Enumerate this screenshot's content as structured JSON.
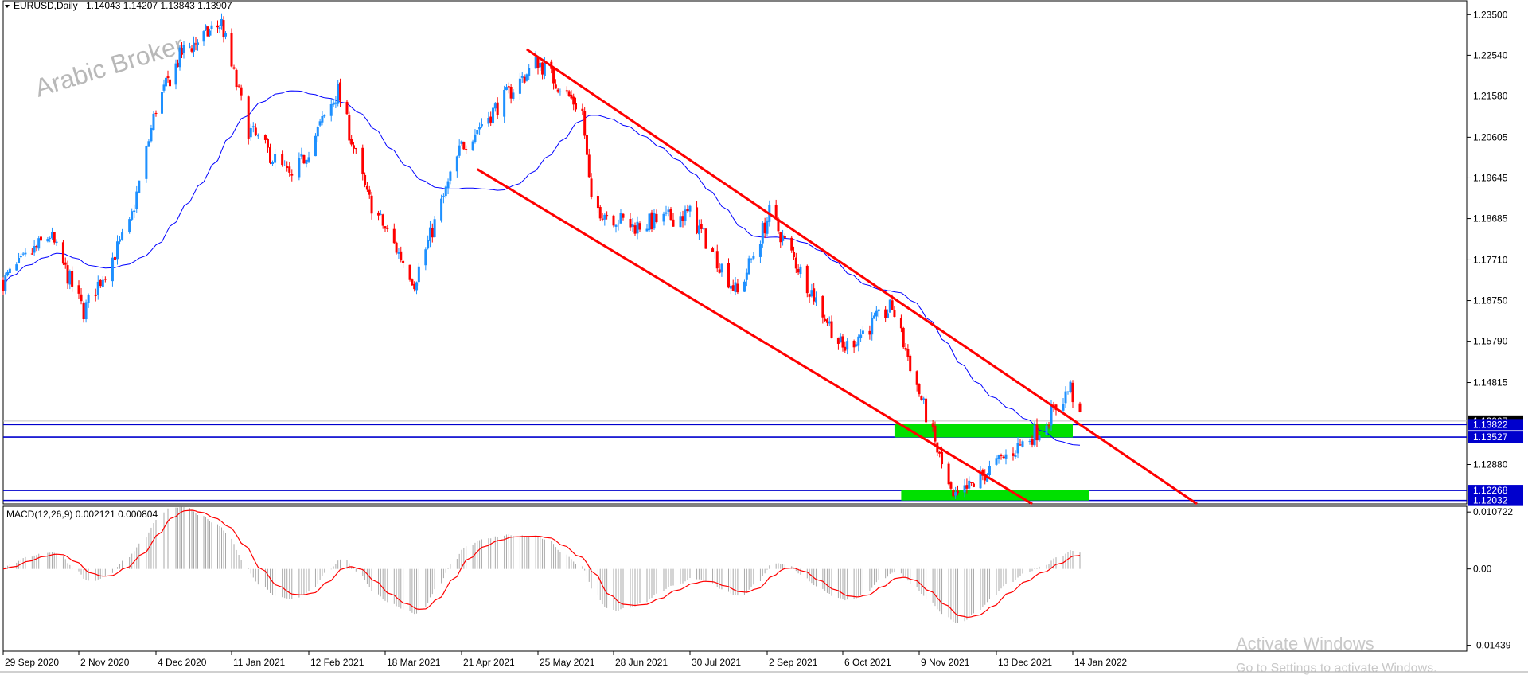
{
  "chart_data": {
    "type": "candlestick",
    "symbol": "EURUSD,Daily",
    "ohlc_header": "1.14043 1.14207 1.13843 1.13907",
    "watermark": "Arabic Broker",
    "price_axis_ticks": [
      "1.23500",
      "1.22540",
      "1.21580",
      "1.20605",
      "1.19645",
      "1.18685",
      "1.17710",
      "1.16750",
      "1.15790",
      "1.14815",
      "1.12880"
    ],
    "price_axis_values": [
      1.235,
      1.2254,
      1.2158,
      1.20605,
      1.19645,
      1.18685,
      1.1771,
      1.1675,
      1.1579,
      1.14815,
      1.1288
    ],
    "price_range": [
      1.1195,
      1.2375
    ],
    "date_axis_ticks": [
      "29 Sep 2020",
      "2 Nov 2020",
      "4 Dec 2020",
      "11 Jan 2021",
      "12 Feb 2021",
      "18 Mar 2021",
      "21 Apr 2021",
      "25 May 2021",
      "28 Jun 2021",
      "30 Jul 2021",
      "2 Sep 2021",
      "6 Oct 2021",
      "9 Nov 2021",
      "13 Dec 2021",
      "14 Jan 2022"
    ],
    "horizontal_levels": [
      {
        "price": 1.13907,
        "label": "1.13907",
        "color": "#c0c0c0"
      },
      {
        "price": 1.13822,
        "label": "1.13822",
        "color": "#0000cd"
      },
      {
        "price": 1.13527,
        "label": "1.13527",
        "color": "#0000cd"
      },
      {
        "price": 1.12268,
        "label": "1.12268",
        "color": "#0000cd"
      },
      {
        "price": 1.12032,
        "label": "1.12032",
        "color": "#0000cd"
      }
    ],
    "zones": [
      {
        "date_from": "2021-10-29",
        "date_to": "2022-01-14",
        "price_low": 1.1352,
        "price_high": 1.1384,
        "color": "#00e000"
      },
      {
        "date_from": "2021-11-01",
        "date_to": "2022-01-21",
        "price_low": 1.1203,
        "price_high": 1.1227,
        "color": "#00e000"
      }
    ],
    "trend_channel": {
      "upper": {
        "from": [
          "2021-05-20",
          1.2268
        ],
        "to": [
          "2022-03-07",
          1.1195
        ],
        "color": "#ff0000"
      },
      "lower": {
        "from": [
          "2021-04-28",
          1.1985
        ],
        "to": [
          "2021-12-28",
          1.1195
        ],
        "color": "#ff0000"
      }
    },
    "moving_average_color": "#0000ff",
    "bull_color": "#1e90ff",
    "bear_color": "#ff0000",
    "macd": {
      "label": "MACD(12,26,9) 0.002121 0.000804",
      "ticks": [
        "0.010722",
        "0.00",
        "-0.01439"
      ],
      "tick_values": [
        0.010722,
        0.0,
        -0.01439
      ],
      "range": [
        -0.0155,
        0.0118
      ],
      "signal_color": "#ff0000",
      "histogram_color": "#a9a9a9"
    },
    "status_text": [
      "Activate Windows",
      "Go to Settings to activate Windows."
    ]
  }
}
